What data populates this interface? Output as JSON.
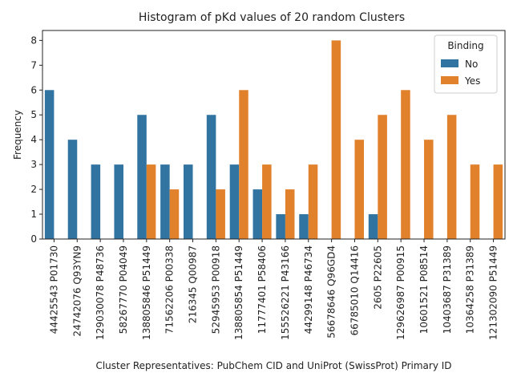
{
  "chart_data": {
    "type": "bar",
    "title": "Histogram of pKd values of 20 random Clusters",
    "xlabel": "Cluster Representatives: PubChem CID and UniProt (SwissProt) Primary ID",
    "ylabel": "Frequency",
    "ylim": [
      0,
      8.4
    ],
    "yticks": [
      0,
      1,
      2,
      3,
      4,
      5,
      6,
      7,
      8
    ],
    "grid": false,
    "legend": {
      "title": "Binding",
      "placement": "top-right"
    },
    "categories": [
      "44425543 P01730",
      "24742076 Q93YN9",
      "129030078 P48736",
      "58267770 P04049",
      "138805846 P51449",
      "71562206 P00338",
      "216345 Q00987",
      "52945953 P00918",
      "138805854 P51449",
      "11777401 P58406",
      "155526221 P43166",
      "44299148 P46734",
      "56678646 Q96GD4",
      "66785010 Q14416",
      "2605 P22605",
      "129626987 P00915",
      "10601521 P08514",
      "10403687 P31389",
      "10364258 P31389",
      "121302090 P51449"
    ],
    "series": [
      {
        "name": "No",
        "color": "#3274a1",
        "values": [
          6,
          4,
          3,
          3,
          5,
          3,
          3,
          5,
          3,
          2,
          1,
          1,
          0,
          0,
          1,
          0,
          0,
          0,
          0,
          0
        ]
      },
      {
        "name": "Yes",
        "color": "#e1812c",
        "values": [
          0,
          0,
          0,
          0,
          3,
          2,
          0,
          2,
          6,
          3,
          2,
          3,
          8,
          4,
          5,
          6,
          4,
          5,
          3,
          3
        ]
      }
    ]
  }
}
